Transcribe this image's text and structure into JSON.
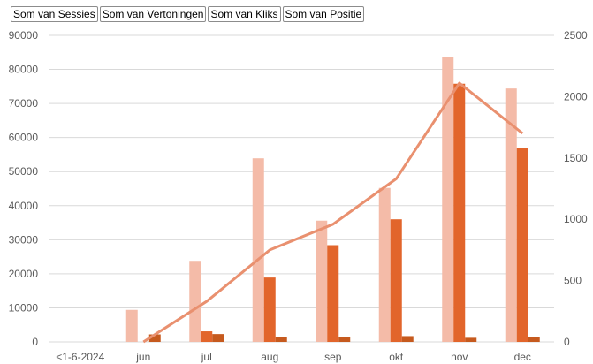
{
  "field_buttons": [
    {
      "label": "Som van Sessies"
    },
    {
      "label": "Som van Vertoningen"
    },
    {
      "label": "Som van Kliks"
    },
    {
      "label": "Som van Positie"
    }
  ],
  "colors": {
    "sessies": "#f4bba8",
    "vertoningen": "#e2652b",
    "kliks": "#c65a1e",
    "positie_line": "#e9906f",
    "grid": "#d9d9d9",
    "text": "#595959"
  },
  "chart_data": {
    "type": "bar",
    "categories": [
      "<1-6-2024",
      "jun",
      "jul",
      "aug",
      "sep",
      "okt",
      "nov",
      "dec"
    ],
    "series": [
      {
        "name": "Som van Sessies",
        "axis": "left",
        "values": [
          0,
          9400,
          23800,
          53900,
          35600,
          45200,
          83600,
          74400
        ]
      },
      {
        "name": "Som van Vertoningen",
        "axis": "left",
        "values": [
          0,
          0,
          3100,
          18900,
          28400,
          36000,
          75800,
          56800
        ]
      },
      {
        "name": "Som van Kliks",
        "axis": "left",
        "values": [
          0,
          2200,
          2300,
          1500,
          1500,
          1700,
          1200,
          1400
        ]
      },
      {
        "name": "Som van Positie",
        "axis": "right",
        "type": "line",
        "values": [
          null,
          0,
          330,
          750,
          960,
          1330,
          2110,
          1700
        ]
      }
    ],
    "ylim_left": [
      0,
      90000
    ],
    "yticks_left": [
      "0",
      "10000",
      "20000",
      "30000",
      "40000",
      "50000",
      "60000",
      "70000",
      "80000",
      "90000"
    ],
    "ylim_right": [
      0,
      2500
    ],
    "yticks_right": [
      "0",
      "500",
      "1000",
      "1500",
      "2000",
      "2500"
    ],
    "grid": true,
    "legend": "none"
  }
}
